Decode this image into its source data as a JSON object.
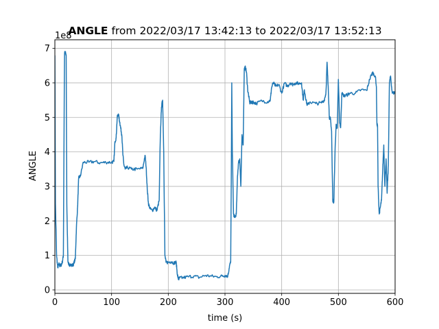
{
  "chart_data": {
    "type": "line",
    "title_bold": "ANGLE",
    "title_rest": " from 2022/03/17 13:42:13 to 2022/03/17 13:52:13",
    "xlabel": "time (s)",
    "ylabel": "ANGLE",
    "offset_text": "1e8",
    "xlim": [
      0,
      600
    ],
    "ylim": [
      -0.1,
      7.25
    ],
    "xticks": [
      0,
      100,
      200,
      300,
      400,
      500,
      600
    ],
    "yticks": [
      0,
      1,
      2,
      3,
      4,
      5,
      6,
      7
    ],
    "grid": true,
    "line_color": "#1f77b4",
    "series": [
      {
        "x": [
          0,
          1,
          3,
          5,
          7,
          9,
          11,
          13,
          15,
          17,
          18,
          20,
          21,
          23,
          25,
          27,
          30,
          33,
          36,
          38,
          40,
          42,
          45,
          50,
          60,
          70,
          80,
          90,
          100,
          104,
          106,
          108,
          110,
          112,
          114,
          116,
          118,
          120,
          122,
          124,
          128,
          135,
          145,
          155,
          159,
          161,
          163,
          165,
          168,
          172,
          176,
          180,
          184,
          186,
          188,
          190,
          192,
          194,
          196,
          200,
          205,
          210,
          214,
          216,
          218,
          220,
          225,
          235,
          245,
          255,
          265,
          275,
          285,
          295,
          300,
          305,
          308,
          310,
          311,
          312,
          313,
          315,
          317,
          320,
          322,
          324,
          326,
          328,
          330,
          332,
          334,
          336,
          338,
          340,
          342,
          344,
          346,
          348,
          350,
          355,
          365,
          375,
          380,
          382,
          385,
          390,
          395,
          400,
          405,
          410,
          415,
          420,
          425,
          430,
          435,
          438,
          440,
          443,
          445,
          450,
          460,
          470,
          475,
          478,
          480,
          482,
          484,
          486,
          488,
          490,
          492,
          494,
          496,
          498,
          500,
          502,
          504,
          506,
          510,
          515,
          520,
          530,
          540,
          550,
          555,
          560,
          565,
          567,
          568,
          569,
          570,
          572,
          574,
          576,
          578,
          580,
          582,
          584,
          586,
          588,
          590,
          592,
          595,
          600
        ],
        "y": [
          6.8,
          2.5,
          1.0,
          0.65,
          0.75,
          0.7,
          0.72,
          0.8,
          1.0,
          6.85,
          6.9,
          6.8,
          2.5,
          0.85,
          0.7,
          0.75,
          0.7,
          0.75,
          0.9,
          1.8,
          2.4,
          3.25,
          3.3,
          3.7,
          3.7,
          3.72,
          3.68,
          3.7,
          3.7,
          3.72,
          4.3,
          4.4,
          5.0,
          5.1,
          4.9,
          4.7,
          4.5,
          3.9,
          3.6,
          3.5,
          3.55,
          3.5,
          3.5,
          3.52,
          3.9,
          3.55,
          2.9,
          2.5,
          2.35,
          2.3,
          2.4,
          2.3,
          2.6,
          4.5,
          5.3,
          5.5,
          4.0,
          1.0,
          0.8,
          0.8,
          0.82,
          0.78,
          0.8,
          0.45,
          0.3,
          0.35,
          0.35,
          0.38,
          0.4,
          0.36,
          0.42,
          0.4,
          0.38,
          0.4,
          0.42,
          0.4,
          0.7,
          0.8,
          3.0,
          6.0,
          4.0,
          2.2,
          2.1,
          2.2,
          3.3,
          3.7,
          3.8,
          3.0,
          4.5,
          4.2,
          6.4,
          6.45,
          6.3,
          5.8,
          5.6,
          5.4,
          5.45,
          5.42,
          5.45,
          5.4,
          5.48,
          5.45,
          5.5,
          5.85,
          6.0,
          5.9,
          5.95,
          5.7,
          6.0,
          5.9,
          6.0,
          5.95,
          6.0,
          5.98,
          6.0,
          5.5,
          5.8,
          5.5,
          5.35,
          5.45,
          5.4,
          5.42,
          5.5,
          5.7,
          6.6,
          5.9,
          5.0,
          4.95,
          4.6,
          2.6,
          2.55,
          4.0,
          4.8,
          4.7,
          6.1,
          4.9,
          4.7,
          5.7,
          5.62,
          5.65,
          5.7,
          5.7,
          5.8,
          5.78,
          6.1,
          6.3,
          6.2,
          5.9,
          4.8,
          4.75,
          3.0,
          2.2,
          2.4,
          2.6,
          3.4,
          4.2,
          3.0,
          3.8,
          2.8,
          3.6,
          6.0,
          6.2,
          5.7,
          5.72
        ],
        "noise": 0.1,
        "samples_per_segment": 8
      }
    ]
  }
}
